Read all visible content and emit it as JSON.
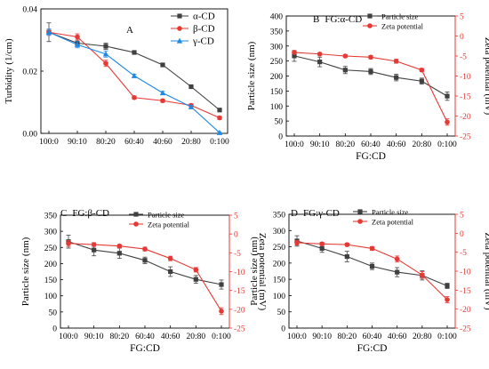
{
  "chart_data": [
    {
      "panel": "A",
      "type": "line",
      "title": "",
      "xlabel": "",
      "ylabel": "Turbidity (1/cm)",
      "categories": [
        "100:0",
        "90:10",
        "80:20",
        "60:40",
        "40:60",
        "20:80",
        "0:100"
      ],
      "ylim": [
        0,
        0.04
      ],
      "yticks": [
        "0.00",
        "0.02",
        "0.04"
      ],
      "legend_position": "top-right",
      "series": [
        {
          "name": "α-CD",
          "color": "#404040",
          "marker": "square",
          "values": [
            0.0325,
            0.029,
            0.028,
            0.026,
            0.022,
            0.015,
            0.0075
          ],
          "errors": [
            0.003,
            0.001,
            0.001,
            0.0005,
            0.0005,
            0.0005,
            0.0005
          ]
        },
        {
          "name": "β-CD",
          "color": "#e53935",
          "marker": "circle",
          "values": [
            0.0325,
            0.031,
            0.0225,
            0.0115,
            0.0105,
            0.009,
            0.005
          ],
          "errors": [
            0.001,
            0.001,
            0.001,
            0.0005,
            0.0005,
            0.0005,
            0.0005
          ]
        },
        {
          "name": "γ-CD",
          "color": "#1e88e5",
          "marker": "triangle",
          "values": [
            0.0325,
            0.0285,
            0.0255,
            0.0185,
            0.013,
            0.0085,
            0.0002
          ],
          "errors": [
            0.001,
            0.001,
            0.001,
            0.0005,
            0.0005,
            0.0005,
            0.0003
          ]
        }
      ]
    },
    {
      "panel": "B",
      "type": "line",
      "title": "FG:α-CD",
      "xlabel": "FG:CD",
      "ylabel": "Particle size (nm)",
      "y2label": "Zeta potential (mV)",
      "categories": [
        "100:0",
        "90:10",
        "80:20",
        "60:40",
        "40:60",
        "20:80",
        "0:100"
      ],
      "ylim": [
        0,
        400
      ],
      "yticks": [
        "0",
        "50",
        "100",
        "150",
        "200",
        "250",
        "300",
        "350",
        "400"
      ],
      "y2lim": [
        -25,
        5
      ],
      "y2ticks": [
        "-25",
        "-20",
        "-15",
        "-10",
        "-5",
        "0",
        "5"
      ],
      "legend_position": "top-right",
      "series": [
        {
          "name": "Particle size",
          "axis": "left",
          "color": "#404040",
          "marker": "square",
          "values": [
            267,
            247,
            220,
            215,
            195,
            183,
            133
          ],
          "errors": [
            18,
            16,
            12,
            10,
            11,
            10,
            14
          ]
        },
        {
          "name": "Zeta potential",
          "axis": "right",
          "color": "#e53935",
          "marker": "circle",
          "values": [
            -4.1,
            -4.5,
            -5.0,
            -5.3,
            -6.3,
            -8.5,
            -21.5
          ],
          "errors": [
            0.3,
            0.3,
            0.3,
            0.4,
            0.5,
            0.4,
            0.8
          ]
        }
      ]
    },
    {
      "panel": "C",
      "type": "line",
      "title": "FG:β-CD",
      "xlabel": "FG:CD",
      "ylabel": "Particle size (nm)",
      "y2label": "Zeta potential (mV)",
      "categories": [
        "100:0",
        "90:10",
        "80:20",
        "60:40",
        "40:60",
        "20:80",
        "0:100"
      ],
      "ylim": [
        0,
        350
      ],
      "yticks": [
        "0",
        "50",
        "100",
        "150",
        "200",
        "250",
        "300",
        "350"
      ],
      "y2lim": [
        -25,
        5
      ],
      "y2ticks": [
        "-25",
        "-20",
        "-15",
        "-10",
        "-5",
        "0",
        "5"
      ],
      "legend_position": "top-right",
      "series": [
        {
          "name": "Particle size",
          "axis": "left",
          "color": "#404040",
          "marker": "square",
          "values": [
            268,
            242,
            232,
            210,
            175,
            151,
            135
          ],
          "errors": [
            20,
            18,
            16,
            10,
            15,
            12,
            14
          ]
        },
        {
          "name": "Zeta potential",
          "axis": "right",
          "color": "#e53935",
          "marker": "circle",
          "values": [
            -2.5,
            -2.8,
            -3.2,
            -4.0,
            -6.5,
            -9.5,
            -20.5
          ],
          "errors": [
            0.8,
            0.5,
            0.4,
            0.5,
            0.6,
            0.6,
            0.9
          ]
        }
      ]
    },
    {
      "panel": "D",
      "type": "line",
      "title": "FG:γ-CD",
      "xlabel": "FG:CD",
      "ylabel": "Particle size (nm)",
      "y2label": "Zeta potential (mV)",
      "categories": [
        "100:0",
        "90:10",
        "80:20",
        "60:40",
        "40:60",
        "20:80",
        "0:100"
      ],
      "ylim": [
        0,
        350
      ],
      "yticks": [
        "0",
        "50",
        "100",
        "150",
        "200",
        "250",
        "300",
        "350"
      ],
      "y2lim": [
        -25,
        5
      ],
      "y2ticks": [
        "-25",
        "-20",
        "-15",
        "-10",
        "-5",
        "0",
        "5"
      ],
      "legend_position": "top-right",
      "series": [
        {
          "name": "Particle size",
          "axis": "left",
          "color": "#404040",
          "marker": "square",
          "values": [
            268,
            245,
            220,
            190,
            172,
            162,
            130
          ],
          "errors": [
            16,
            12,
            16,
            10,
            14,
            14,
            8
          ]
        },
        {
          "name": "Zeta potential",
          "axis": "right",
          "color": "#e53935",
          "marker": "circle",
          "values": [
            -2.5,
            -2.8,
            -3.0,
            -4.0,
            -6.8,
            -11.0,
            -17.5
          ],
          "errors": [
            0.6,
            0.4,
            0.4,
            0.5,
            0.8,
            0.9,
            0.8
          ]
        }
      ]
    }
  ]
}
